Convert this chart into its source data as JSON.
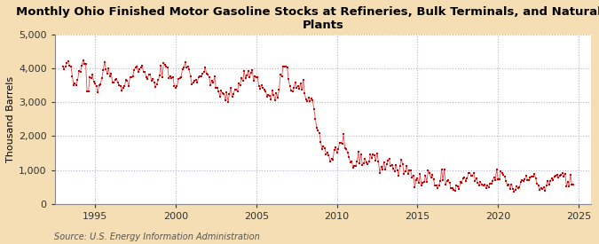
{
  "title": "Monthly Ohio Finished Motor Gasoline Stocks at Refineries, Bulk Terminals, and Natural Gas\nPlants",
  "ylabel": "Thousand Barrels",
  "source": "Source: U.S. Energy Information Administration",
  "background_color": "#f5deb3",
  "plot_bg_color": "#ffffff",
  "marker_color": "#cc0000",
  "line_color": "#cc0000",
  "grid_color": "#aaaacc",
  "ylim": [
    0,
    5000
  ],
  "yticks": [
    0,
    1000,
    2000,
    3000,
    4000,
    5000
  ],
  "ytick_labels": [
    "0",
    "1,000",
    "2,000",
    "3,000",
    "4,000",
    "5,000"
  ],
  "xticks": [
    1995,
    2000,
    2005,
    2010,
    2015,
    2020,
    2025
  ],
  "xlim_start": 1992.5,
  "xlim_end": 2025.8,
  "title_fontsize": 9.5,
  "tick_fontsize": 8,
  "ylabel_fontsize": 8,
  "source_fontsize": 7
}
